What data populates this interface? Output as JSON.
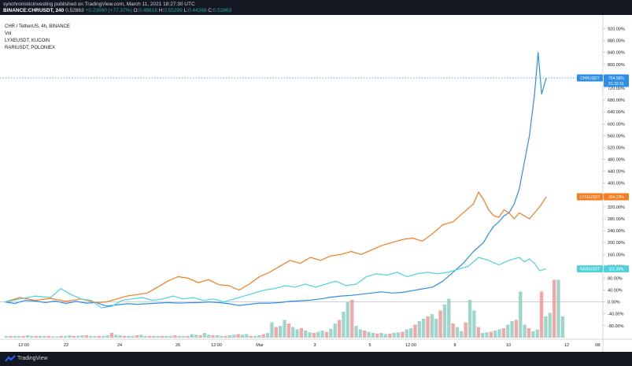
{
  "header": {
    "publisher_line": "synchronisticinvesting published on TradingView.com, March 11, 2021 18:27:30 UTC",
    "symbol_line_symbol": "BINANCE:CHRUSDT, 240",
    "symbol_line_price": "0.52863",
    "symbol_line_change": "+0.23060 (+77.37%)",
    "ohlc": [
      {
        "k": "O:",
        "v": "0.49818"
      },
      {
        "k": "H:",
        "v": "0.55299"
      },
      {
        "k": "L:",
        "v": "0.44268"
      },
      {
        "k": "C:",
        "v": "0.52863"
      }
    ]
  },
  "legend": [
    "CHR / TetherUS, 4h, BINANCE",
    "Vol",
    "LYXEUSDT, KUCOIN",
    "RARIUSDT, POLONIEX"
  ],
  "footer": {
    "brand": "TradingView"
  },
  "chart_data": {
    "type": "line",
    "scale": "percent",
    "x_tick_labels": [
      "12:00",
      "22",
      "24",
      "26",
      "12:00",
      "Mar",
      "3",
      "5",
      "12:00",
      "8",
      "10",
      "12",
      "08:"
    ],
    "y_tick_labels": [
      "-80.00%",
      "-40.00%",
      "0.00%",
      "40.00%",
      "80.00%",
      "120.00%",
      "160.00%",
      "200.00%",
      "240.00%",
      "280.00%",
      "320.00%",
      "360.00%",
      "400.00%",
      "440.00%",
      "480.00%",
      "520.00%",
      "560.00%",
      "600.00%",
      "640.00%",
      "680.00%",
      "720.00%",
      "760.00%",
      "800.00%",
      "840.00%",
      "880.00%",
      "920.00%"
    ],
    "ylim": [
      -115,
      940
    ],
    "x_range": [
      0,
      110
    ],
    "series": [
      {
        "name": "CHRUSDT",
        "color": "#2e8ee8",
        "last_label": "754.56%",
        "countdown": "01:32:31",
        "points": [
          [
            0,
            0
          ],
          [
            2,
            -5
          ],
          [
            4,
            5
          ],
          [
            6,
            3
          ],
          [
            8,
            -2
          ],
          [
            10,
            3
          ],
          [
            12,
            -5
          ],
          [
            14,
            2
          ],
          [
            16,
            -4
          ],
          [
            18,
            -2
          ],
          [
            20,
            -14
          ],
          [
            22,
            -10
          ],
          [
            24,
            -6
          ],
          [
            26,
            -8
          ],
          [
            28,
            -6
          ],
          [
            30,
            -4
          ],
          [
            32,
            -2
          ],
          [
            34,
            -4
          ],
          [
            36,
            -3
          ],
          [
            38,
            -2
          ],
          [
            40,
            0
          ],
          [
            42,
            -2
          ],
          [
            44,
            -6
          ],
          [
            46,
            -12
          ],
          [
            48,
            -8
          ],
          [
            50,
            -4
          ],
          [
            52,
            -4
          ],
          [
            54,
            -2
          ],
          [
            56,
            2
          ],
          [
            58,
            4
          ],
          [
            60,
            6
          ],
          [
            62,
            10
          ],
          [
            64,
            16
          ],
          [
            66,
            20
          ],
          [
            68,
            22
          ],
          [
            70,
            26
          ],
          [
            72,
            30
          ],
          [
            74,
            34
          ],
          [
            76,
            30
          ],
          [
            78,
            32
          ],
          [
            80,
            38
          ],
          [
            82,
            44
          ],
          [
            84,
            50
          ],
          [
            86,
            70
          ],
          [
            88,
            100
          ],
          [
            90,
            130
          ],
          [
            92,
            170
          ],
          [
            94,
            200
          ],
          [
            95,
            230
          ],
          [
            96,
            255
          ],
          [
            97,
            270
          ],
          [
            98,
            290
          ],
          [
            99,
            300
          ],
          [
            100,
            330
          ],
          [
            101,
            380
          ],
          [
            102,
            470
          ],
          [
            103,
            560
          ],
          [
            104,
            700
          ],
          [
            104.7,
            840
          ],
          [
            105.4,
            700
          ],
          [
            106.3,
            754.56
          ]
        ]
      },
      {
        "name": "LYXEUSDT",
        "color": "#f57c1f",
        "last_label": "354.23%",
        "points": [
          [
            0,
            0
          ],
          [
            3,
            15
          ],
          [
            6,
            5
          ],
          [
            9,
            12
          ],
          [
            12,
            2
          ],
          [
            15,
            10
          ],
          [
            18,
            -2
          ],
          [
            20,
            0
          ],
          [
            22,
            10
          ],
          [
            24,
            20
          ],
          [
            26,
            25
          ],
          [
            28,
            30
          ],
          [
            30,
            50
          ],
          [
            32,
            70
          ],
          [
            34,
            85
          ],
          [
            36,
            80
          ],
          [
            38,
            65
          ],
          [
            40,
            75
          ],
          [
            42,
            58
          ],
          [
            44,
            55
          ],
          [
            46,
            40
          ],
          [
            48,
            60
          ],
          [
            50,
            85
          ],
          [
            52,
            100
          ],
          [
            54,
            120
          ],
          [
            56,
            140
          ],
          [
            58,
            130
          ],
          [
            60,
            150
          ],
          [
            62,
            140
          ],
          [
            64,
            155
          ],
          [
            66,
            160
          ],
          [
            68,
            170
          ],
          [
            70,
            160
          ],
          [
            72,
            175
          ],
          [
            74,
            190
          ],
          [
            76,
            200
          ],
          [
            78,
            210
          ],
          [
            80,
            215
          ],
          [
            82,
            205
          ],
          [
            84,
            230
          ],
          [
            86,
            260
          ],
          [
            88,
            270
          ],
          [
            90,
            300
          ],
          [
            92,
            330
          ],
          [
            93,
            370
          ],
          [
            94,
            345
          ],
          [
            95,
            310
          ],
          [
            96,
            290
          ],
          [
            97,
            285
          ],
          [
            98,
            310
          ],
          [
            99,
            300
          ],
          [
            100,
            280
          ],
          [
            101,
            300
          ],
          [
            102,
            290
          ],
          [
            103,
            280
          ],
          [
            104,
            300
          ],
          [
            105,
            320
          ],
          [
            106.3,
            354.23
          ]
        ]
      },
      {
        "name": "RARIUSDT",
        "color": "#4fd2dc",
        "last_label": "111.39%",
        "points": [
          [
            0,
            0
          ],
          [
            3,
            10
          ],
          [
            6,
            20
          ],
          [
            9,
            15
          ],
          [
            11,
            45
          ],
          [
            13,
            25
          ],
          [
            15,
            10
          ],
          [
            17,
            5
          ],
          [
            19,
            -20
          ],
          [
            21,
            -15
          ],
          [
            23,
            5
          ],
          [
            25,
            10
          ],
          [
            27,
            15
          ],
          [
            29,
            5
          ],
          [
            31,
            10
          ],
          [
            33,
            20
          ],
          [
            35,
            10
          ],
          [
            37,
            15
          ],
          [
            39,
            5
          ],
          [
            41,
            10
          ],
          [
            43,
            0
          ],
          [
            45,
            10
          ],
          [
            47,
            20
          ],
          [
            49,
            30
          ],
          [
            51,
            40
          ],
          [
            53,
            45
          ],
          [
            55,
            55
          ],
          [
            57,
            50
          ],
          [
            59,
            60
          ],
          [
            61,
            50
          ],
          [
            63,
            60
          ],
          [
            65,
            70
          ],
          [
            67,
            55
          ],
          [
            69,
            60
          ],
          [
            71,
            85
          ],
          [
            73,
            95
          ],
          [
            75,
            90
          ],
          [
            77,
            100
          ],
          [
            79,
            85
          ],
          [
            81,
            95
          ],
          [
            83,
            100
          ],
          [
            85,
            95
          ],
          [
            87,
            100
          ],
          [
            89,
            110
          ],
          [
            91,
            120
          ],
          [
            93,
            150
          ],
          [
            95,
            140
          ],
          [
            97,
            125
          ],
          [
            99,
            140
          ],
          [
            101,
            150
          ],
          [
            102,
            135
          ],
          [
            103,
            145
          ],
          [
            104,
            130
          ],
          [
            105,
            105
          ],
          [
            106.3,
            111.39
          ]
        ]
      }
    ],
    "volume": [
      3,
      3,
      3,
      3,
      3,
      4,
      3,
      3,
      3,
      3,
      3,
      2,
      2,
      3,
      3,
      4,
      3,
      3,
      4,
      4,
      3,
      3,
      3,
      3,
      4,
      8,
      5,
      4,
      3,
      3,
      3,
      4,
      5,
      3,
      3,
      3,
      3,
      3,
      3,
      3,
      4,
      3,
      3,
      3,
      6,
      5,
      4,
      8,
      5,
      4,
      4,
      3,
      3,
      4,
      5,
      6,
      5,
      6,
      3,
      3,
      4,
      6,
      8,
      26,
      18,
      20,
      30,
      24,
      18,
      14,
      16,
      12,
      9,
      8,
      10,
      12,
      10,
      15,
      24,
      30,
      44,
      60,
      64,
      20,
      14,
      12,
      10,
      8,
      7,
      8,
      6,
      7,
      8,
      9,
      10,
      14,
      16,
      22,
      28,
      32,
      36,
      40,
      32,
      46,
      56,
      66,
      24,
      18,
      11,
      26,
      64,
      46,
      18,
      8,
      9,
      10,
      12,
      14,
      16,
      22,
      28,
      30,
      78,
      22,
      16,
      11,
      14,
      78,
      36,
      42,
      98,
      98,
      36
    ],
    "volume_max": 100
  }
}
